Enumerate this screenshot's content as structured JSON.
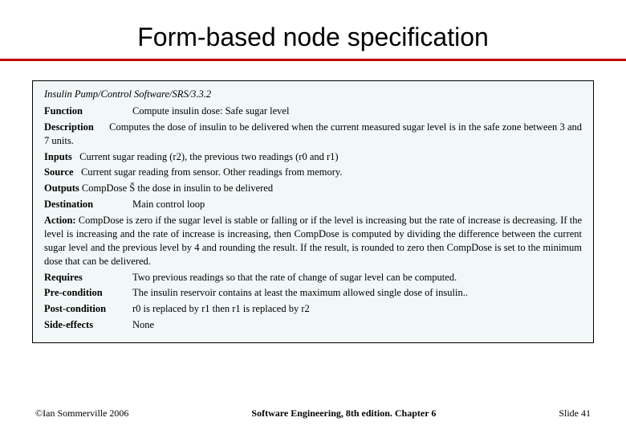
{
  "title": "Form-based node specification",
  "rule_color": "#c00000",
  "spec": {
    "header": "Insulin Pump/Control Software/SRS/3.3.2",
    "function_label": "Function",
    "function_value": "Compute insulin dose: Safe sugar level",
    "description_label": "Description",
    "description_value": "Computes the dose of insulin to be delivered when the current measured sugar level is in the safe zone between 3 and 7 units.",
    "inputs_label": "Inputs",
    "inputs_value": "Current sugar reading (r2), the previous two readings (r0 and r1)",
    "source_label": "Source",
    "source_value": "Current sugar reading from sensor. Other readings from memory.",
    "outputs_label": "Outputs",
    "outputs_value": "CompDose Š the dose in insulin to be delivered",
    "destination_label": "Destination",
    "destination_value": "Main control loop",
    "action_label": "Action:",
    "action_value": " CompDose is zero if the sugar level is stable or falling or if the level is increasing but the rate of increase is decreasing. If the level is increasing and the rate of increase is increasing, then CompDose is computed by dividing the difference between the current sugar level and the previous level by 4 and rounding the result. If the result, is rounded to zero then CompDose is set to the minimum dose that can be delivered.",
    "requires_label": "Requires",
    "requires_value": "Two previous readings so that the rate of change of sugar level can be computed.",
    "precondition_label": "Pre-condition",
    "precondition_value": "The insulin reservoir contains at least the maximum allowed single dose of insulin..",
    "postcondition_label": "Post-condition",
    "postcondition_value": "r0 is replaced by r1 then r1 is replaced by r2",
    "sideeffects_label": "Side-effects",
    "sideeffects_value": "None"
  },
  "footer": {
    "left": "©Ian Sommerville 2006",
    "center": "Software Engineering, 8th edition. Chapter 6",
    "right": "Slide 41"
  },
  "spec_bg": "#f2f8f8"
}
